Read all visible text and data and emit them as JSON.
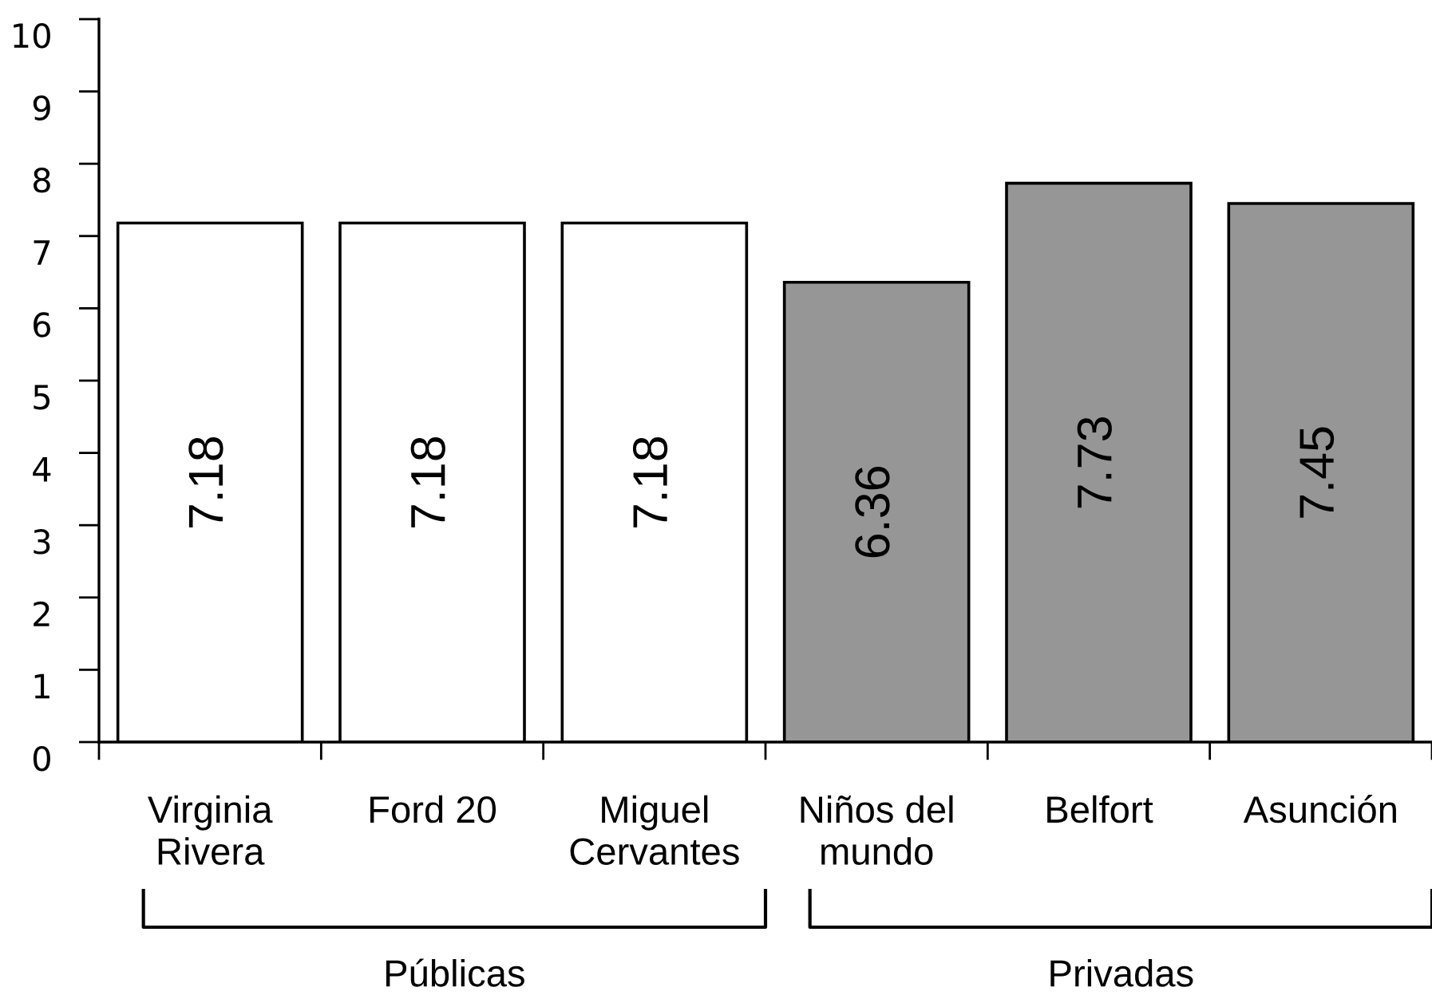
{
  "chart_data": {
    "type": "bar",
    "categories": [
      "Virginia\nRivera",
      "Ford 20",
      "Miguel\nCervantes",
      "Niños del\nmundo",
      "Belfort",
      "Asunción"
    ],
    "values": [
      7.18,
      7.18,
      7.18,
      6.36,
      7.73,
      7.45
    ],
    "colors": [
      "#ffffff",
      "#ffffff",
      "#ffffff",
      "#969696",
      "#969696",
      "#969696"
    ],
    "ylim": [
      0,
      10
    ],
    "yticks": [
      0,
      1,
      2,
      3,
      4,
      5,
      6,
      7,
      8,
      9,
      10
    ],
    "data_labels": true,
    "grid": false,
    "annotations": [
      "Públicas",
      "Privadas"
    ]
  }
}
